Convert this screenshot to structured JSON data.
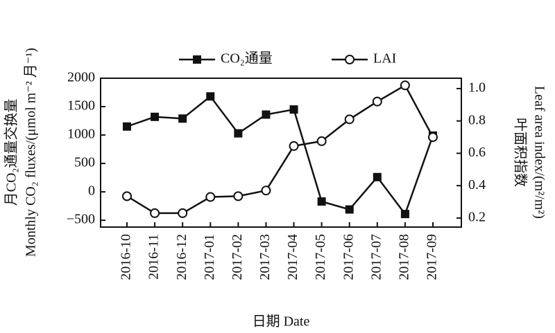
{
  "chart_data": {
    "type": "line",
    "x_label": "日期 Date",
    "y_label": [
      "月CO₂通量交换量",
      "Monthly CO₂ fluxes/(μmol m⁻² 月⁻¹)"
    ],
    "y2_label": [
      "叶面积指数",
      "Leaf area index/(m²/m²)"
    ],
    "categories": [
      "2016-10",
      "2016-11",
      "2016-12",
      "2017-01",
      "2017-02",
      "2017-03",
      "2017-04",
      "2017-05",
      "2017-06",
      "2017-07",
      "2017-08",
      "2017-09"
    ],
    "series": [
      {
        "name": "CO₂通量",
        "color": "#111111",
        "marker": "square",
        "values": [
          1150,
          1320,
          1290,
          1680,
          1030,
          1360,
          1450,
          -170,
          -310,
          260,
          -390,
          990
        ]
      },
      {
        "name": "LAI",
        "color": "#111111",
        "marker": "circle",
        "axis": "y2",
        "values": [
          0.335,
          0.23,
          0.23,
          0.33,
          0.335,
          0.37,
          0.645,
          0.675,
          0.81,
          0.92,
          1.02,
          0.7
        ]
      }
    ],
    "ylim": [
      -620,
      2000
    ],
    "yticks": [
      {
        "value": -500,
        "label": "−500"
      },
      0,
      500,
      1000,
      1500,
      2000
    ],
    "y2lim": [
      0.144,
      1.064
    ],
    "y2ticks": [
      0.2,
      0.4,
      0.6,
      0.8,
      {
        "value": 1.0,
        "label": "1.0"
      }
    ],
    "legend": "top"
  }
}
